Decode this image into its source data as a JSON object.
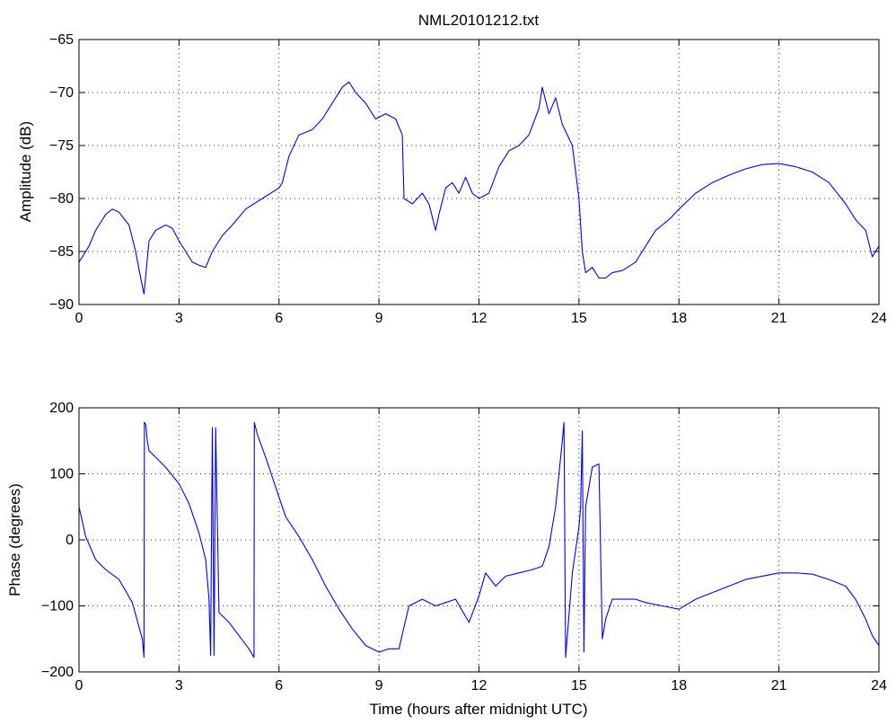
{
  "chart_data": [
    {
      "type": "line",
      "title": "NML20101212.txt",
      "xlabel": "",
      "ylabel": "Amplitude (dB)",
      "xlim": [
        0,
        24
      ],
      "ylim": [
        -90,
        -65
      ],
      "xticks": [
        0,
        3,
        6,
        9,
        12,
        15,
        18,
        21,
        24
      ],
      "yticks": [
        -90,
        -85,
        -80,
        -75,
        -70,
        -65
      ],
      "grid": true,
      "color": "#0000ff",
      "series": [
        {
          "x": [
            0,
            0.3,
            0.5,
            0.8,
            1.0,
            1.2,
            1.5,
            1.7,
            1.85,
            1.95,
            2.1,
            2.3,
            2.6,
            2.8,
            3.0,
            3.2,
            3.4,
            3.6,
            3.8,
            4.0,
            4.3,
            4.6,
            5.0,
            5.5,
            6.0,
            6.1,
            6.3,
            6.6,
            7.0,
            7.3,
            7.6,
            7.9,
            8.1,
            8.3,
            8.6,
            8.9,
            9.2,
            9.5,
            9.7,
            9.75,
            10.0,
            10.3,
            10.5,
            10.7,
            10.8,
            11.0,
            11.2,
            11.4,
            11.6,
            11.8,
            12.0,
            12.3,
            12.6,
            12.9,
            13.2,
            13.5,
            13.8,
            13.9,
            14.1,
            14.3,
            14.5,
            14.8,
            15.0,
            15.1,
            15.2,
            15.4,
            15.6,
            15.8,
            16.0,
            16.3,
            16.7,
            17.0,
            17.3,
            17.7,
            18.0,
            18.5,
            19.0,
            19.5,
            20.0,
            20.5,
            21.0,
            21.5,
            22.0,
            22.5,
            23.0,
            23.3,
            23.6,
            23.8,
            24.0
          ],
          "y": [
            -86.0,
            -84.5,
            -83.0,
            -81.5,
            -81.0,
            -81.3,
            -82.5,
            -85.0,
            -87.5,
            -89.0,
            -84.0,
            -83.0,
            -82.5,
            -82.8,
            -84.0,
            -85.0,
            -86.0,
            -86.3,
            -86.5,
            -85.0,
            -83.5,
            -82.5,
            -81.0,
            -80.0,
            -79.0,
            -78.5,
            -76.0,
            -74.0,
            -73.5,
            -72.5,
            -71.0,
            -69.5,
            -69.0,
            -70.0,
            -71.0,
            -72.5,
            -72.0,
            -72.5,
            -74.0,
            -80.0,
            -80.5,
            -79.5,
            -80.5,
            -83.0,
            -81.5,
            -79.0,
            -78.5,
            -79.5,
            -78.0,
            -79.5,
            -80.0,
            -79.5,
            -77.0,
            -75.5,
            -75.0,
            -74.0,
            -71.5,
            -69.5,
            -72.0,
            -70.5,
            -73.0,
            -75.0,
            -80.0,
            -85.0,
            -87.0,
            -86.5,
            -87.5,
            -87.5,
            -87.0,
            -86.8,
            -86.0,
            -84.5,
            -83.0,
            -82.0,
            -81.0,
            -79.5,
            -78.5,
            -77.8,
            -77.2,
            -76.8,
            -76.7,
            -77.0,
            -77.5,
            -78.5,
            -80.5,
            -82.0,
            -83.0,
            -85.5,
            -84.5
          ]
        }
      ]
    },
    {
      "type": "line",
      "title": "",
      "xlabel": "Time (hours after midnight UTC)",
      "ylabel": "Phase (degrees)",
      "xlim": [
        0,
        24
      ],
      "ylim": [
        -200,
        200
      ],
      "xticks": [
        0,
        3,
        6,
        9,
        12,
        15,
        18,
        21,
        24
      ],
      "yticks": [
        -200,
        -100,
        0,
        100,
        200
      ],
      "grid": true,
      "color": "#0000ff",
      "series": [
        {
          "x": [
            0,
            0.2,
            0.5,
            0.8,
            1.2,
            1.6,
            1.9,
            1.95,
            1.96,
            2.0,
            2.05,
            2.1,
            2.3,
            2.6,
            3.0,
            3.3,
            3.6,
            3.8,
            3.9,
            3.95,
            4.0,
            4.05,
            4.1,
            4.2,
            4.5,
            4.8,
            5.1,
            5.25,
            5.26,
            5.35,
            5.6,
            5.9,
            6.2,
            6.6,
            7.0,
            7.4,
            7.8,
            8.2,
            8.6,
            9.0,
            9.3,
            9.6,
            9.9,
            10.3,
            10.7,
            11.0,
            11.3,
            11.7,
            12.0,
            12.2,
            12.5,
            12.8,
            13.2,
            13.6,
            13.9,
            14.1,
            14.3,
            14.5,
            14.55,
            14.6,
            14.8,
            15.0,
            15.05,
            15.1,
            15.15,
            15.2,
            15.4,
            15.6,
            15.7,
            15.8,
            16.0,
            16.3,
            16.7,
            17.0,
            17.5,
            18.0,
            18.5,
            19.0,
            19.5,
            20.0,
            20.5,
            21.0,
            21.5,
            22.0,
            22.5,
            23.0,
            23.3,
            23.6,
            23.8,
            24.0
          ],
          "y": [
            50,
            5,
            -30,
            -45,
            -60,
            -95,
            -150,
            -178,
            178,
            175,
            150,
            135,
            125,
            110,
            85,
            55,
            10,
            -30,
            -90,
            -175,
            170,
            -175,
            170,
            -110,
            -125,
            -145,
            -165,
            -178,
            178,
            160,
            125,
            80,
            35,
            5,
            -30,
            -70,
            -105,
            -135,
            -160,
            -170,
            -165,
            -165,
            -100,
            -90,
            -100,
            -95,
            -90,
            -125,
            -85,
            -50,
            -70,
            -55,
            -50,
            -45,
            -40,
            -10,
            50,
            150,
            178,
            -178,
            -50,
            20,
            50,
            165,
            -170,
            50,
            110,
            115,
            -150,
            -120,
            -90,
            -90,
            -90,
            -95,
            -100,
            -105,
            -90,
            -80,
            -70,
            -60,
            -55,
            -50,
            -50,
            -52,
            -60,
            -70,
            -90,
            -120,
            -145,
            -160
          ]
        }
      ]
    }
  ]
}
